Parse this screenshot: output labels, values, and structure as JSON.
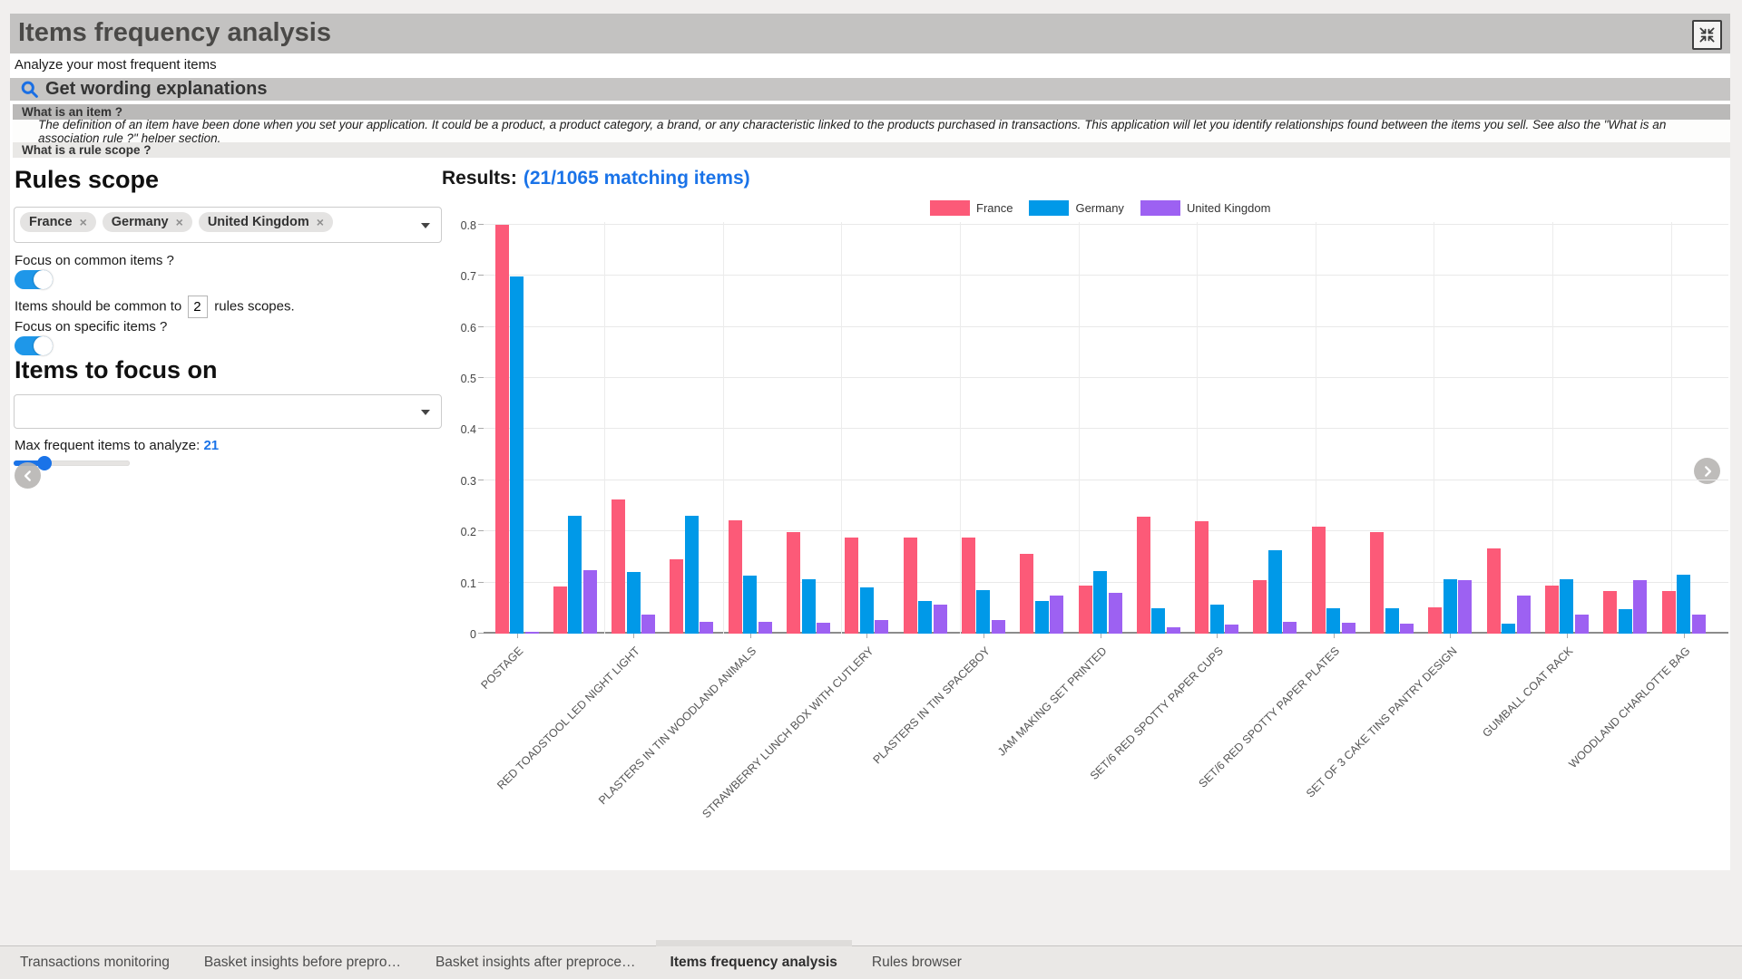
{
  "header": {
    "title": "Items frequency analysis",
    "subtitle": "Analyze your most frequent items"
  },
  "helper": {
    "wording_button": "Get wording explanations",
    "item_question": "What is an item ?",
    "item_definition": "The definition of an item have been done when you set your application. It could be a product, a product category, a brand, or any characteristic linked to the products purchased in transactions. This application will let you identify relationships found between the items you sell. See also the \"What is an association rule ?\" helper section.",
    "rule_scope_question": "What is a rule scope ?"
  },
  "controls": {
    "rules_scope_title": "Rules scope",
    "selected_scopes": [
      "France",
      "Germany",
      "United Kingdom"
    ],
    "focus_common_label": "Focus on common items ?",
    "focus_common_on": true,
    "common_text_before": "Items should be common to",
    "common_count": "2",
    "common_text_after": "rules scopes.",
    "focus_specific_label": "Focus on specific items ?",
    "focus_specific_on": true,
    "items_focus_title": "Items to focus on",
    "items_focus_selected": "",
    "max_items_label": "Max frequent items to analyze:",
    "max_items_value": "21"
  },
  "results": {
    "label": "Results:",
    "link": "(21/1065 matching items)"
  },
  "chart_data": {
    "type": "bar",
    "title": "",
    "xlabel": "",
    "ylabel": "",
    "ylim": [
      0,
      0.8
    ],
    "ytick_step": 0.1,
    "grid": true,
    "legend_position": "top",
    "x_tick_label_every": 2,
    "x_tick_labels": [
      "POSTAGE",
      "RED TOADSTOOL LED NIGHT LIGHT",
      "PLASTERS IN TIN WOODLAND ANIMALS",
      "STRAWBERRY LUNCH BOX WITH CUTLERY",
      "PLASTERS IN TIN SPACEBOY",
      "JAM MAKING SET PRINTED",
      "SET/6 RED SPOTTY PAPER CUPS",
      "SET/6 RED SPOTTY PAPER PLATES",
      "SET OF 3 CAKE TINS PANTRY DESIGN",
      "GUMBALL COAT RACK",
      "WOODLAND CHARLOTTE BAG"
    ],
    "series": [
      {
        "name": "France",
        "color": "#fc5a78",
        "values": [
          0.8,
          0.093,
          0.262,
          0.145,
          0.221,
          0.198,
          0.188,
          0.188,
          0.188,
          0.156,
          0.094,
          0.229,
          0.22,
          0.104,
          0.209,
          0.198,
          0.051,
          0.166,
          0.094,
          0.083,
          0.083
        ]
      },
      {
        "name": "Germany",
        "color": "#0099e8",
        "values": [
          0.698,
          0.23,
          0.121,
          0.231,
          0.114,
          0.107,
          0.091,
          0.063,
          0.085,
          0.063,
          0.122,
          0.049,
          0.056,
          0.163,
          0.049,
          0.049,
          0.107,
          0.019,
          0.107,
          0.048,
          0.115
        ]
      },
      {
        "name": "United Kingdom",
        "color": "#9d61f2",
        "values": [
          0.004,
          0.124,
          0.038,
          0.023,
          0.023,
          0.021,
          0.026,
          0.056,
          0.026,
          0.074,
          0.079,
          0.012,
          0.017,
          0.023,
          0.021,
          0.02,
          0.104,
          0.074,
          0.038,
          0.104,
          0.038
        ]
      }
    ]
  },
  "footer": {
    "tabs": [
      {
        "label": "Transactions monitoring",
        "active": false
      },
      {
        "label": "Basket insights before prepro…",
        "active": false
      },
      {
        "label": "Basket insights after preproce…",
        "active": false
      },
      {
        "label": "Items frequency analysis",
        "active": true
      },
      {
        "label": "Rules browser",
        "active": false
      }
    ]
  }
}
